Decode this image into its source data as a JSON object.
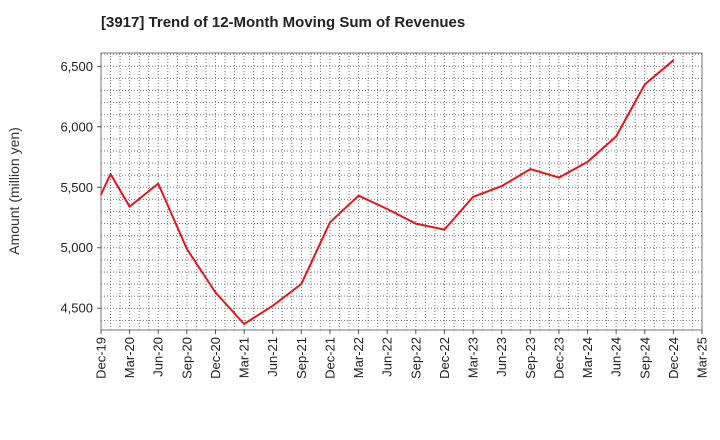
{
  "chart_data": {
    "type": "line",
    "title": "[3917]  Trend of 12-Month Moving Sum of Revenues",
    "ylabel": "Amount (million yen)",
    "xlabel": "",
    "x_ticks": [
      "Dec-19",
      "Mar-20",
      "Jun-20",
      "Sep-20",
      "Dec-20",
      "Mar-21",
      "Jun-21",
      "Sep-21",
      "Dec-21",
      "Mar-22",
      "Jun-22",
      "Sep-22",
      "Dec-22",
      "Mar-23",
      "Jun-23",
      "Sep-23",
      "Dec-23",
      "Mar-24",
      "Jun-24",
      "Sep-24",
      "Dec-24",
      "Mar-25"
    ],
    "y_ticks": [
      4500,
      5000,
      5500,
      6000,
      6500
    ],
    "y_tick_labels": [
      "4,500",
      "5,000",
      "5,500",
      "6,000",
      "6,500"
    ],
    "ylim": [
      4320,
      6610
    ],
    "grid": true,
    "series": [
      {
        "color": "#e8141c",
        "x": [
          "Dec-19",
          "Jan-20",
          "Mar-20",
          "Jun-20",
          "Sep-20",
          "Dec-20",
          "Mar-21",
          "Jun-21",
          "Sep-21",
          "Dec-21",
          "Mar-22",
          "Jun-22",
          "Sep-22",
          "Dec-22",
          "Mar-23",
          "Jun-23",
          "Sep-23",
          "Dec-23",
          "Mar-24",
          "Jun-24",
          "Sep-24",
          "Dec-24"
        ],
        "values": [
          5440,
          5610,
          5340,
          5530,
          4990,
          4630,
          4370,
          4520,
          4700,
          5210,
          5430,
          5320,
          5200,
          5150,
          5420,
          5510,
          5650,
          5580,
          5710,
          5920,
          6350,
          6550
        ]
      }
    ]
  }
}
